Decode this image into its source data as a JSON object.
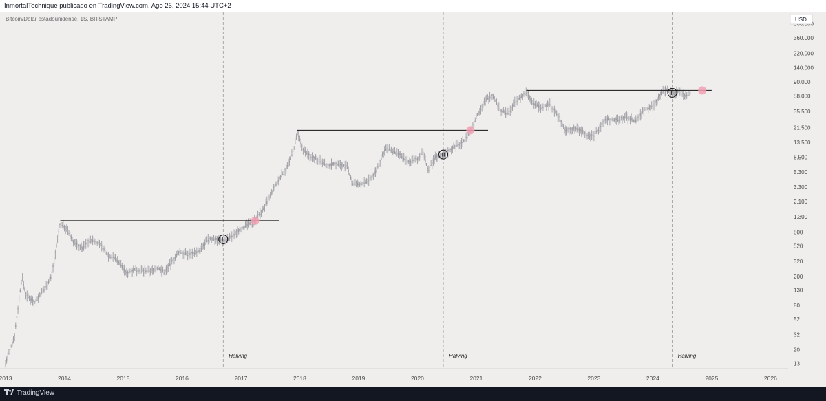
{
  "header": {
    "text": "InmortalTechnique publicado en TradingView.com, Ago 26, 2024 15:44 UTC+2"
  },
  "symbol": "Bitcoin/Dólar estadounidense, 1S, BITSTAMP",
  "currency_badge": "USD",
  "footer": {
    "brand": "TradingView",
    "logo_icon": "tradingview-logo-icon"
  },
  "chart_data": {
    "type": "candlestick",
    "y_scale": "log",
    "ylim": [
      11,
      800000
    ],
    "xlim": [
      2013.0,
      2026.3
    ],
    "y_ticks": [
      {
        "label": "560.000",
        "value": 560000
      },
      {
        "label": "360.000",
        "value": 360000
      },
      {
        "label": "220.000",
        "value": 220000
      },
      {
        "label": "140.000",
        "value": 140000
      },
      {
        "label": "90.000",
        "value": 90000
      },
      {
        "label": "58.000",
        "value": 58000
      },
      {
        "label": "35.500",
        "value": 35500
      },
      {
        "label": "21.500",
        "value": 21500
      },
      {
        "label": "13.500",
        "value": 13500
      },
      {
        "label": "8.500",
        "value": 8500
      },
      {
        "label": "5.300",
        "value": 5300
      },
      {
        "label": "3.300",
        "value": 3300
      },
      {
        "label": "2.100",
        "value": 2100
      },
      {
        "label": "1.300",
        "value": 1300
      },
      {
        "label": "800",
        "value": 800
      },
      {
        "label": "520",
        "value": 520
      },
      {
        "label": "320",
        "value": 320
      },
      {
        "label": "200",
        "value": 200
      },
      {
        "label": "130",
        "value": 130
      },
      {
        "label": "80",
        "value": 80
      },
      {
        "label": "52",
        "value": 52
      },
      {
        "label": "32",
        "value": 32
      },
      {
        "label": "20",
        "value": 20
      },
      {
        "label": "13",
        "value": 13
      }
    ],
    "x_ticks": [
      {
        "label": "2013",
        "value": 2013.0
      },
      {
        "label": "2014",
        "value": 2014.0
      },
      {
        "label": "2015",
        "value": 2015.0
      },
      {
        "label": "2016",
        "value": 2016.0
      },
      {
        "label": "2017",
        "value": 2017.0
      },
      {
        "label": "2018",
        "value": 2018.0
      },
      {
        "label": "2019",
        "value": 2019.0
      },
      {
        "label": "2020",
        "value": 2020.0
      },
      {
        "label": "2021",
        "value": 2021.0
      },
      {
        "label": "2022",
        "value": 2022.0
      },
      {
        "label": "2023",
        "value": 2023.0
      },
      {
        "label": "2024",
        "value": 2024.0
      },
      {
        "label": "2025",
        "value": 2025.0
      },
      {
        "label": "2026",
        "value": 2026.0
      }
    ],
    "price_path": [
      [
        2013.0,
        13
      ],
      [
        2013.15,
        30
      ],
      [
        2013.28,
        200
      ],
      [
        2013.35,
        110
      ],
      [
        2013.5,
        90
      ],
      [
        2013.65,
        130
      ],
      [
        2013.78,
        200
      ],
      [
        2013.88,
        600
      ],
      [
        2013.93,
        1100
      ],
      [
        2014.05,
        850
      ],
      [
        2014.15,
        600
      ],
      [
        2014.3,
        480
      ],
      [
        2014.4,
        600
      ],
      [
        2014.5,
        620
      ],
      [
        2014.6,
        560
      ],
      [
        2014.75,
        380
      ],
      [
        2014.85,
        360
      ],
      [
        2014.95,
        300
      ],
      [
        2015.05,
        220
      ],
      [
        2015.2,
        250
      ],
      [
        2015.4,
        230
      ],
      [
        2015.6,
        260
      ],
      [
        2015.7,
        230
      ],
      [
        2015.82,
        310
      ],
      [
        2015.95,
        430
      ],
      [
        2016.1,
        400
      ],
      [
        2016.3,
        440
      ],
      [
        2016.45,
        650
      ],
      [
        2016.55,
        650
      ],
      [
        2016.7,
        610
      ],
      [
        2016.85,
        700
      ],
      [
        2017.0,
        900
      ],
      [
        2017.2,
        1100
      ],
      [
        2017.35,
        1500
      ],
      [
        2017.5,
        2500
      ],
      [
        2017.65,
        4300
      ],
      [
        2017.8,
        6500
      ],
      [
        2017.9,
        11000
      ],
      [
        2017.96,
        18000
      ],
      [
        2018.05,
        11000
      ],
      [
        2018.15,
        9000
      ],
      [
        2018.3,
        8000
      ],
      [
        2018.45,
        6500
      ],
      [
        2018.6,
        7000
      ],
      [
        2018.8,
        6300
      ],
      [
        2018.9,
        3700
      ],
      [
        2019.0,
        3600
      ],
      [
        2019.15,
        3900
      ],
      [
        2019.3,
        5500
      ],
      [
        2019.45,
        11000
      ],
      [
        2019.55,
        10500
      ],
      [
        2019.7,
        9000
      ],
      [
        2019.85,
        7300
      ],
      [
        2020.0,
        8000
      ],
      [
        2020.1,
        10000
      ],
      [
        2020.18,
        5500
      ],
      [
        2020.3,
        8500
      ],
      [
        2020.45,
        9300
      ],
      [
        2020.6,
        11500
      ],
      [
        2020.75,
        13000
      ],
      [
        2020.9,
        19000
      ],
      [
        2021.0,
        30000
      ],
      [
        2021.15,
        50000
      ],
      [
        2021.28,
        60000
      ],
      [
        2021.4,
        37000
      ],
      [
        2021.55,
        33000
      ],
      [
        2021.65,
        47000
      ],
      [
        2021.75,
        55000
      ],
      [
        2021.85,
        65000
      ],
      [
        2021.95,
        47000
      ],
      [
        2022.1,
        40000
      ],
      [
        2022.25,
        45000
      ],
      [
        2022.4,
        30000
      ],
      [
        2022.5,
        20000
      ],
      [
        2022.65,
        21000
      ],
      [
        2022.8,
        19500
      ],
      [
        2022.9,
        16500
      ],
      [
        2023.0,
        17000
      ],
      [
        2023.2,
        28000
      ],
      [
        2023.4,
        27000
      ],
      [
        2023.55,
        30000
      ],
      [
        2023.7,
        26000
      ],
      [
        2023.85,
        37000
      ],
      [
        2024.0,
        42000
      ],
      [
        2024.15,
        65000
      ],
      [
        2024.22,
        70000
      ],
      [
        2024.35,
        62000
      ],
      [
        2024.45,
        69000
      ],
      [
        2024.55,
        58000
      ],
      [
        2024.65,
        64000
      ]
    ],
    "resistance_lines": [
      {
        "x_start": 2013.93,
        "x_end": 2017.65,
        "price": 1150
      },
      {
        "x_start": 2017.96,
        "x_end": 2021.2,
        "price": 19700
      },
      {
        "x_start": 2021.85,
        "x_end": 2025.0,
        "price": 69000
      }
    ],
    "halvings": [
      {
        "label": "Halving",
        "x": 2016.7
      },
      {
        "label": "Halving",
        "x": 2020.44
      },
      {
        "label": "Halving",
        "x": 2024.33
      }
    ],
    "circle_markers": [
      {
        "x": 2016.7,
        "price": 640
      },
      {
        "x": 2020.44,
        "price": 9200
      },
      {
        "x": 2024.33,
        "price": 64000
      }
    ],
    "pink_markers": [
      {
        "x": 2017.24,
        "price": 1150
      },
      {
        "x": 2020.9,
        "price": 19700
      },
      {
        "x": 2024.84,
        "price": 69000
      }
    ],
    "colors": {
      "background": "#efeeed",
      "candles": "#9b9ba1",
      "resistance": "#111111",
      "halving": "#9a9a9a",
      "circle": "#111111",
      "pink": "#f2a0b3",
      "axis_text": "#4a4a4a"
    }
  }
}
